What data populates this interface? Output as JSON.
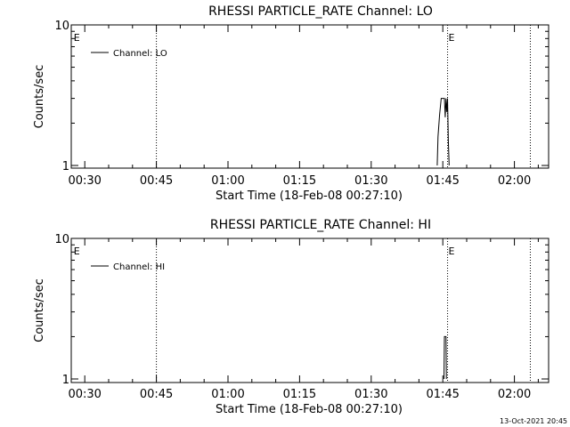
{
  "chart_data": [
    {
      "type": "line",
      "title": "RHESSI PARTICLE_RATE Channel: LO",
      "xlabel": "Start Time (18-Feb-08 00:27:10)",
      "ylabel": "Counts/sec",
      "y_scale": "log",
      "ylim": [
        1,
        10
      ],
      "y_ticks": [
        "1",
        "10"
      ],
      "xlim": [
        "00:27:10",
        "02:07:10"
      ],
      "x_ticks": [
        "00:30",
        "00:45",
        "01:00",
        "01:15",
        "01:30",
        "01:45",
        "02:00"
      ],
      "legend": {
        "placement": "top-left",
        "entries": [
          "Channel: LO"
        ]
      },
      "event_markers": [
        {
          "label": "E",
          "time": "00:27:30",
          "line": false
        },
        {
          "label": "",
          "time": "00:45:00",
          "line": true
        },
        {
          "label": "E",
          "time": "01:46:00",
          "line": true
        },
        {
          "label": "",
          "time": "02:03:20",
          "line": true
        }
      ],
      "series": [
        {
          "name": "Channel: LO",
          "x": [
            "01:43:50",
            "01:44:00",
            "01:44:20",
            "01:44:40",
            "01:45:00",
            "01:45:20",
            "01:45:30",
            "01:45:40",
            "01:45:50",
            "01:46:00",
            "01:46:10",
            "01:46:20"
          ],
          "y": [
            1,
            1.6,
            2.3,
            3.0,
            3.0,
            3.0,
            2.2,
            3.0,
            2.4,
            3.0,
            1.5,
            1
          ]
        }
      ]
    },
    {
      "type": "line",
      "title": "RHESSI PARTICLE_RATE Channel: HI",
      "xlabel": "Start Time (18-Feb-08 00:27:10)",
      "ylabel": "Counts/sec",
      "y_scale": "log",
      "ylim": [
        1,
        10
      ],
      "y_ticks": [
        "1",
        "10"
      ],
      "xlim": [
        "00:27:10",
        "02:07:10"
      ],
      "x_ticks": [
        "00:30",
        "00:45",
        "01:00",
        "01:15",
        "01:30",
        "01:45",
        "02:00"
      ],
      "legend": {
        "placement": "top-left",
        "entries": [
          "Channel: HI"
        ]
      },
      "event_markers": [
        {
          "label": "E",
          "time": "00:27:30",
          "line": false
        },
        {
          "label": "",
          "time": "00:45:00",
          "line": true
        },
        {
          "label": "E",
          "time": "01:46:00",
          "line": true
        },
        {
          "label": "",
          "time": "02:03:20",
          "line": true
        }
      ],
      "series": [
        {
          "name": "Channel: HI",
          "x": [
            "01:45:15",
            "01:45:20",
            "01:45:40",
            "01:45:45"
          ],
          "y": [
            1,
            2.0,
            2.0,
            1
          ]
        }
      ]
    }
  ],
  "footer": {
    "timestamp": "13-Oct-2021 20:45"
  }
}
